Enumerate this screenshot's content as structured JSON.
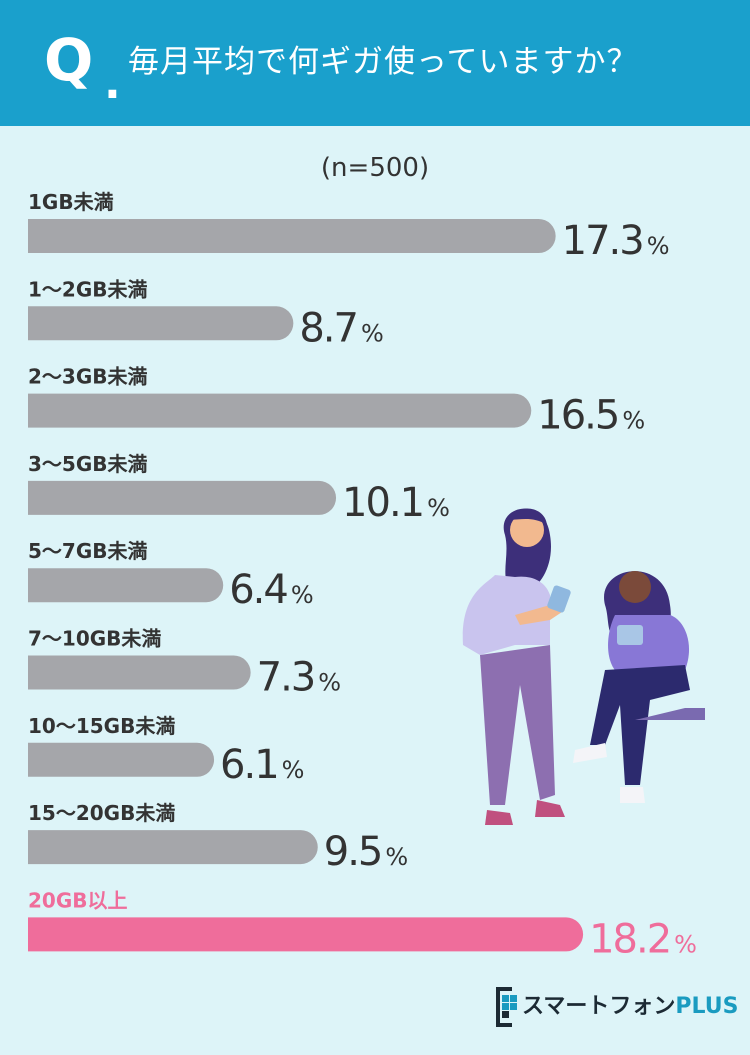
{
  "header": {
    "q_mark": "Q",
    "q_dot": ".",
    "question": "毎月平均で何ギガ使っていますか？"
  },
  "sample": "(n=500)",
  "chart_data": {
    "type": "bar",
    "orientation": "horizontal",
    "categories": [
      "1GB未満",
      "1〜2GB未満",
      "2〜3GB未満",
      "3〜5GB未満",
      "5〜7GB未満",
      "7〜10GB未満",
      "10〜15GB未満",
      "15〜20GB未満",
      "20GB以上"
    ],
    "values": [
      17.3,
      8.7,
      16.5,
      10.1,
      6.4,
      7.3,
      6.1,
      9.5,
      18.2
    ],
    "unit": "%",
    "highlight_index": 8,
    "colors": {
      "bar": "#a5a6aa",
      "highlight": "#ef6d9b",
      "label": "#333333",
      "value": "#333333"
    }
  },
  "logo": {
    "brand": "スマートフォン",
    "plus": "PLUS"
  },
  "colors": {
    "header_bg": "#1aa0cc",
    "page_bg": "#ddf4f8"
  }
}
